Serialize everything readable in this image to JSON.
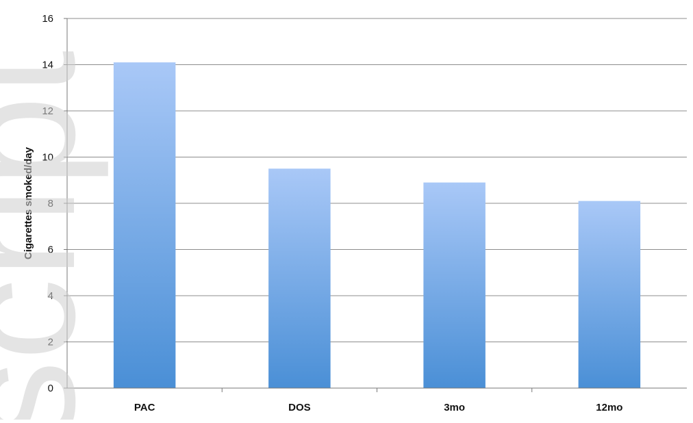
{
  "chart_data": {
    "type": "bar",
    "title": "",
    "xlabel": "",
    "ylabel": "Cigarettes smoked/day",
    "categories": [
      "PAC",
      "DOS",
      "3mo",
      "12mo"
    ],
    "values": [
      14.1,
      9.5,
      8.9,
      8.1
    ],
    "ylim": [
      0,
      16
    ],
    "yticks": [
      0,
      2,
      4,
      6,
      8,
      10,
      12,
      14,
      16
    ],
    "grid": true,
    "legend": "none",
    "colors": {
      "bar_top": "#a9c8f7",
      "bar_bottom": "#4a8fd6",
      "grid": "#8c8c8c"
    }
  },
  "watermark": {
    "text": "script"
  }
}
